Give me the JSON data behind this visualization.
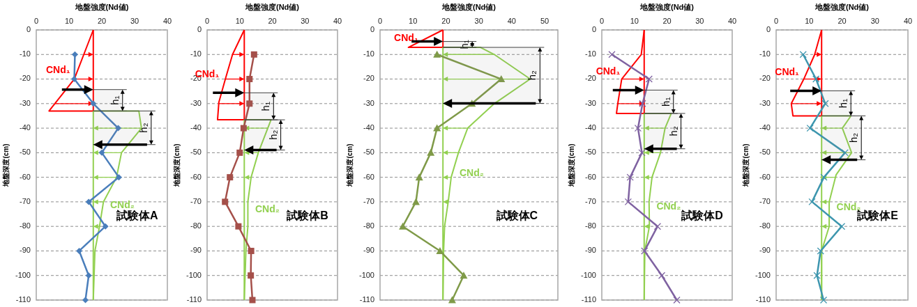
{
  "chart_data": [
    {
      "type": "line",
      "orientation": "horizontal",
      "xlabel": "地盤強度(Nd値)",
      "ylabel": "地盤深度(cm)",
      "xlim": [
        0,
        40
      ],
      "xticks": [
        0,
        10,
        20,
        30,
        40
      ],
      "ylim": [
        -110,
        0
      ],
      "yticks": [
        -110,
        -100,
        -90,
        -80,
        -70,
        -60,
        -50,
        -40,
        -30,
        -20,
        -10,
        0
      ],
      "grid": "y",
      "series": [
        {
          "name": "CNd₁",
          "color": "#ff0000",
          "marker": "none",
          "x": [
            0,
            -20,
            -33,
            -33
          ],
          "values": [
            17.4,
            11.6,
            3.9,
            17.4
          ]
        },
        {
          "color": "#ff0000",
          "marker": "none",
          "x": [
            0,
            -33
          ],
          "values": [
            17.4,
            17.4
          ]
        },
        {
          "name": "CNd₂",
          "color": "#92d050",
          "marker": "none",
          "x": [
            -33,
            -33,
            -40,
            -50,
            -60,
            -70,
            -80,
            -90,
            -110
          ],
          "values": [
            17.4,
            31.3,
            32.1,
            26,
            24.5,
            20.5,
            19.3,
            17.9,
            17.4
          ]
        },
        {
          "color": "#92d050",
          "marker": "none",
          "x": [
            -33,
            -110
          ],
          "values": [
            17.4,
            17.4
          ]
        },
        {
          "color": "#4a7ebb",
          "marker": "diamond",
          "x": [
            -10,
            -20,
            -30,
            -40,
            -50,
            -60,
            -70,
            -80,
            -90,
            -100,
            -110
          ],
          "values": [
            11.8,
            11.6,
            17.4,
            25,
            20,
            25.2,
            16,
            21.1,
            13.1,
            16,
            15
          ]
        }
      ],
      "bands": [
        {
          "axis": "y",
          "from": -24.3,
          "to": -33,
          "label": "h₁"
        },
        {
          "axis": "y",
          "from": -33,
          "to": -46.7,
          "label": "h₂"
        }
      ],
      "annotations": [
        "試験体A"
      ]
    },
    {
      "type": "line",
      "orientation": "horizontal",
      "xlabel": "地盤強度(Nd値)",
      "ylabel": "地盤深度(cm)",
      "xlim": [
        0,
        40
      ],
      "xticks": [
        0,
        10,
        20,
        30,
        40
      ],
      "ylim": [
        -110,
        0
      ],
      "yticks": [
        -110,
        -100,
        -90,
        -80,
        -70,
        -60,
        -50,
        -40,
        -30,
        -20,
        -10,
        0
      ],
      "grid": "y",
      "series": [
        {
          "name": "CNd₁",
          "color": "#ff0000",
          "marker": "none",
          "x": [
            0,
            -10,
            -20,
            -29.5,
            -36.6,
            -36.6
          ],
          "values": [
            11.4,
            7.8,
            5.6,
            3.6,
            3.2,
            11.4
          ]
        },
        {
          "color": "#ff0000",
          "marker": "none",
          "x": [
            0,
            -36.6
          ],
          "values": [
            11.4,
            11.4
          ]
        },
        {
          "name": "CNd₂",
          "color": "#92d050",
          "marker": "none",
          "x": [
            -36.6,
            -36.6,
            -50,
            -60,
            -70,
            -80,
            -90,
            -110
          ],
          "values": [
            11.4,
            19.6,
            15.7,
            13.5,
            12.5,
            12.5,
            11.9,
            11.4
          ]
        },
        {
          "color": "#92d050",
          "marker": "none",
          "x": [
            -36.6,
            -110
          ],
          "values": [
            11.4,
            11.4
          ]
        },
        {
          "color": "#a5504a",
          "marker": "square",
          "x": [
            -10,
            -20,
            -30,
            -40,
            -50,
            -60,
            -70,
            -80,
            -90,
            -100,
            -110
          ],
          "values": [
            14.4,
            13,
            13,
            11.2,
            10,
            7,
            5.5,
            9.6,
            13.5,
            13.4,
            13.9
          ]
        }
      ],
      "bands": [
        {
          "axis": "y",
          "from": -25.6,
          "to": -36.6,
          "label": "h₁"
        },
        {
          "axis": "y",
          "from": -36.6,
          "to": -48.9,
          "label": "h₂"
        }
      ],
      "annotations": [
        "試験体B"
      ]
    },
    {
      "type": "line",
      "orientation": "horizontal",
      "xlabel": "地盤強度(Nd値)",
      "ylabel": "地盤深度(cm)",
      "xlim": [
        0,
        54
      ],
      "xticks": [
        0,
        10,
        20,
        30,
        40,
        50
      ],
      "ylim": [
        -110,
        0
      ],
      "yticks": [
        -110,
        -100,
        -90,
        -80,
        -70,
        -60,
        -50,
        -40,
        -30,
        -20,
        -10,
        0
      ],
      "grid": "y",
      "series": [
        {
          "name": "CNd₁",
          "color": "#ff0000",
          "marker": "none",
          "x": [
            0,
            -7.1,
            -7.1
          ],
          "values": [
            19.1,
            8.6,
            19.1
          ]
        },
        {
          "color": "#ff0000",
          "marker": "none",
          "x": [
            0,
            -7.1
          ],
          "values": [
            19.1,
            19.1
          ]
        },
        {
          "name": "CNd₂",
          "color": "#92d050",
          "marker": "none",
          "x": [
            -7.1,
            -7.1,
            -10,
            -20,
            -30,
            -40,
            -50,
            -60,
            -70,
            -80,
            -90,
            -110
          ],
          "values": [
            19.1,
            30.5,
            34.7,
            45.6,
            34.7,
            26.6,
            23.8,
            21.6,
            20.7,
            19.6,
            19.3,
            19.1
          ]
        },
        {
          "color": "#92d050",
          "marker": "none",
          "x": [
            -7.1,
            -110
          ],
          "values": [
            19.1,
            19.1
          ]
        },
        {
          "color": "#7f9a48",
          "marker": "triangle",
          "x": [
            -10,
            -20,
            -30,
            -40,
            -50,
            -60,
            -70,
            -80,
            -90,
            -100,
            -110
          ],
          "values": [
            17.3,
            36.8,
            27.9,
            17.3,
            15.4,
            11.9,
            10.9,
            6.9,
            18.2,
            25.4,
            21.9
          ]
        }
      ],
      "bands": [
        {
          "axis": "y",
          "from": -4.7,
          "to": -7.1,
          "label": "h₁"
        },
        {
          "axis": "y",
          "from": -7.1,
          "to": -29.9,
          "label": "h₂"
        }
      ],
      "annotations": [
        "試験体C"
      ]
    },
    {
      "type": "line",
      "orientation": "horizontal",
      "xlabel": "地盤強度(Nd値)",
      "ylabel": "地盤深度(cm)",
      "xlim": [
        0,
        40
      ],
      "xticks": [
        0,
        10,
        20,
        30,
        40
      ],
      "ylim": [
        -110,
        0
      ],
      "yticks": [
        -110,
        -100,
        -90,
        -80,
        -70,
        -60,
        -50,
        -40,
        -30,
        -20,
        -10,
        0
      ],
      "grid": "y",
      "series": [
        {
          "name": "CNd₁",
          "color": "#ff0000",
          "marker": "none",
          "x": [
            0,
            -10,
            -20,
            -30,
            -34,
            -34
          ],
          "values": [
            13,
            12.1,
            6.1,
            4.9,
            4.5,
            13
          ]
        },
        {
          "color": "#ff0000",
          "marker": "none",
          "x": [
            0,
            -34
          ],
          "values": [
            13,
            13
          ]
        },
        {
          "name": "CNd₂",
          "color": "#92d050",
          "marker": "none",
          "x": [
            -34,
            -34,
            -40,
            -50,
            -60,
            -70,
            -80,
            -90,
            -110
          ],
          "values": [
            13,
            21.3,
            19.4,
            18,
            15.4,
            14.5,
            14.6,
            13.2,
            13
          ]
        },
        {
          "color": "#92d050",
          "marker": "none",
          "x": [
            -34,
            -110
          ],
          "values": [
            13,
            13
          ]
        },
        {
          "color": "#7f62a1",
          "marker": "cross",
          "x": [
            -10,
            -20,
            -30,
            -40,
            -50,
            -60,
            -70,
            -80,
            -90,
            -100,
            -110
          ],
          "values": [
            3.1,
            14.5,
            12.5,
            11.1,
            12.3,
            8.7,
            8.1,
            17.1,
            13.1,
            18.4,
            23
          ]
        }
      ],
      "bands": [
        {
          "axis": "y",
          "from": -24.5,
          "to": -34,
          "label": "h₁"
        },
        {
          "axis": "y",
          "from": -34,
          "to": -48.4,
          "label": "h₂"
        }
      ],
      "annotations": [
        "試験体D"
      ]
    },
    {
      "type": "line",
      "orientation": "horizontal",
      "xlabel": "地盤強度(Nd値)",
      "ylabel": "地盤深度(cm)",
      "xlim": [
        0,
        40
      ],
      "xticks": [
        0,
        10,
        20,
        30,
        40
      ],
      "ylim": [
        -110,
        0
      ],
      "yticks": [
        -110,
        -100,
        -90,
        -80,
        -70,
        -60,
        -50,
        -40,
        -30,
        -20,
        -10,
        0
      ],
      "grid": "y",
      "series": [
        {
          "name": "CNd₁",
          "color": "#ff0000",
          "marker": "none",
          "x": [
            0,
            -10,
            -20,
            -30,
            -35,
            -35
          ],
          "values": [
            13.8,
            11.7,
            8.4,
            4.6,
            5.1,
            13.8
          ]
        },
        {
          "color": "#ff0000",
          "marker": "none",
          "x": [
            0,
            -35
          ],
          "values": [
            13.8,
            13.8
          ]
        },
        {
          "name": "CNd₂",
          "color": "#92d050",
          "marker": "none",
          "x": [
            -35,
            -35,
            -40,
            -50,
            -59,
            -70,
            -80,
            -90,
            -110
          ],
          "values": [
            13.8,
            22.7,
            20.1,
            22.9,
            18.2,
            16.1,
            16.1,
            13.8,
            13.8
          ]
        },
        {
          "color": "#92d050",
          "marker": "none",
          "x": [
            -35,
            -110
          ],
          "values": [
            13.8,
            13.8
          ]
        },
        {
          "color": "#3d96ae",
          "marker": "cross",
          "x": [
            -10,
            -20,
            -30,
            -40,
            -50,
            -60,
            -70,
            -80,
            -90,
            -100,
            -110
          ],
          "values": [
            8.2,
            12.1,
            14.9,
            10.3,
            20.9,
            14.5,
            10.9,
            19.9,
            13.5,
            12.4,
            14.4
          ]
        }
      ],
      "bands": [
        {
          "axis": "y",
          "from": -24.8,
          "to": -35,
          "label": "h₁"
        },
        {
          "axis": "y",
          "from": -35,
          "to": -52.9,
          "label": "h₂"
        }
      ],
      "annotations": [
        "試験体E"
      ]
    }
  ]
}
